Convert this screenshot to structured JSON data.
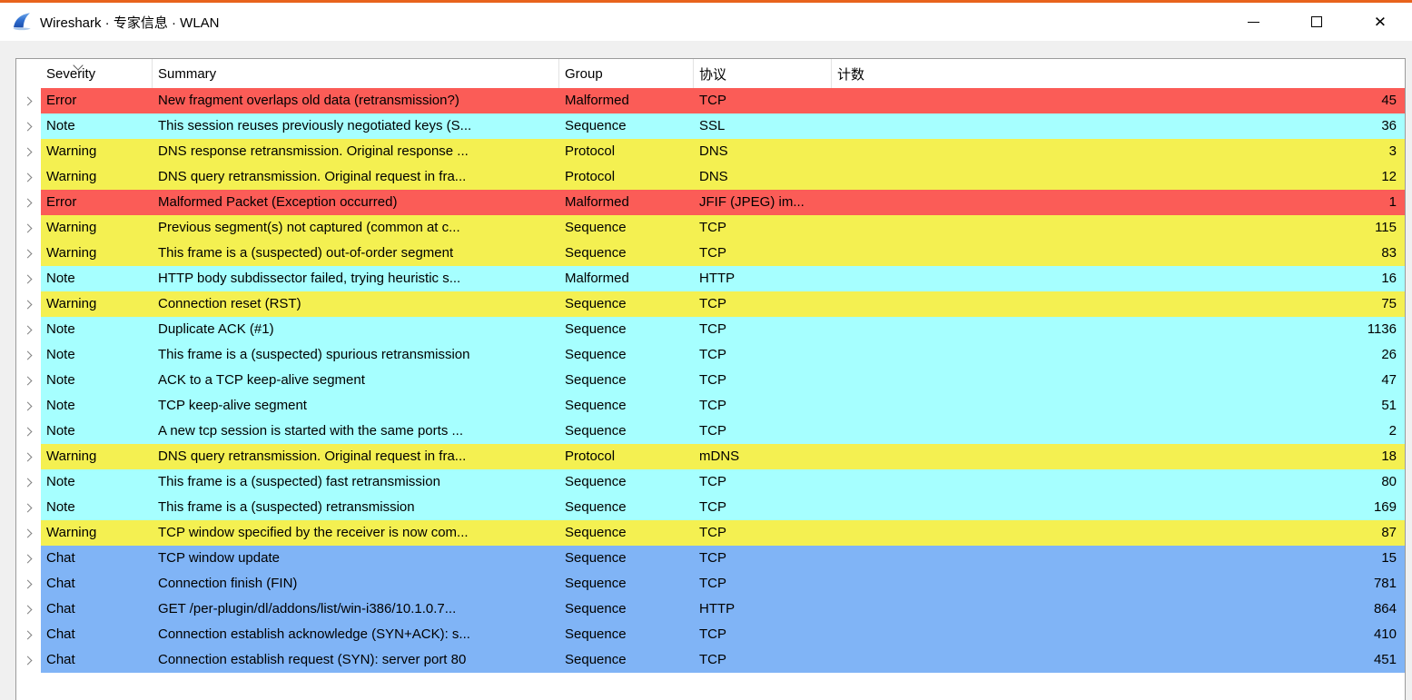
{
  "window": {
    "title": "Wireshark · 专家信息 · WLAN",
    "icons": {
      "app_icon": "wireshark-fin-logo",
      "minimize": "minimize-icon",
      "maximize": "maximize-icon",
      "close": "close-icon"
    },
    "accent_top_border": "#e8631c"
  },
  "table": {
    "columns": [
      "Severity",
      "Summary",
      "Group",
      "协议",
      "计数"
    ],
    "sort": {
      "column": "Severity",
      "direction": "descending"
    },
    "severity_colors": {
      "Error": "#fb5c57",
      "Warning": "#f4f051",
      "Note": "#a6ffff",
      "Chat": "#80b4f6"
    },
    "rows": [
      {
        "severity": "Error",
        "summary": "New fragment overlaps old data (retransmission?)",
        "group": "Malformed",
        "protocol": "TCP",
        "count": "45"
      },
      {
        "severity": "Note",
        "summary": "This session reuses previously negotiated keys (S...",
        "group": "Sequence",
        "protocol": "SSL",
        "count": "36"
      },
      {
        "severity": "Warning",
        "summary": "DNS response retransmission. Original response ...",
        "group": "Protocol",
        "protocol": "DNS",
        "count": "3"
      },
      {
        "severity": "Warning",
        "summary": "DNS query retransmission. Original request in fra...",
        "group": "Protocol",
        "protocol": "DNS",
        "count": "12"
      },
      {
        "severity": "Error",
        "summary": "Malformed Packet (Exception occurred)",
        "group": "Malformed",
        "protocol": "JFIF (JPEG) im...",
        "count": "1"
      },
      {
        "severity": "Warning",
        "summary": "Previous segment(s) not captured (common at c...",
        "group": "Sequence",
        "protocol": "TCP",
        "count": "115"
      },
      {
        "severity": "Warning",
        "summary": "This frame is a (suspected) out-of-order segment",
        "group": "Sequence",
        "protocol": "TCP",
        "count": "83"
      },
      {
        "severity": "Note",
        "summary": "HTTP body subdissector failed, trying heuristic s...",
        "group": "Malformed",
        "protocol": "HTTP",
        "count": "16"
      },
      {
        "severity": "Warning",
        "summary": "Connection reset (RST)",
        "group": "Sequence",
        "protocol": "TCP",
        "count": "75"
      },
      {
        "severity": "Note",
        "summary": "Duplicate ACK (#1)",
        "group": "Sequence",
        "protocol": "TCP",
        "count": "1136"
      },
      {
        "severity": "Note",
        "summary": "This frame is a (suspected) spurious retransmission",
        "group": "Sequence",
        "protocol": "TCP",
        "count": "26"
      },
      {
        "severity": "Note",
        "summary": "ACK to a TCP keep-alive segment",
        "group": "Sequence",
        "protocol": "TCP",
        "count": "47"
      },
      {
        "severity": "Note",
        "summary": "TCP keep-alive segment",
        "group": "Sequence",
        "protocol": "TCP",
        "count": "51"
      },
      {
        "severity": "Note",
        "summary": "A new tcp session is started with the same ports ...",
        "group": "Sequence",
        "protocol": "TCP",
        "count": "2"
      },
      {
        "severity": "Warning",
        "summary": "DNS query retransmission. Original request in fra...",
        "group": "Protocol",
        "protocol": "mDNS",
        "count": "18"
      },
      {
        "severity": "Note",
        "summary": "This frame is a (suspected) fast retransmission",
        "group": "Sequence",
        "protocol": "TCP",
        "count": "80"
      },
      {
        "severity": "Note",
        "summary": "This frame is a (suspected) retransmission",
        "group": "Sequence",
        "protocol": "TCP",
        "count": "169"
      },
      {
        "severity": "Warning",
        "summary": "TCP window specified by the receiver is now com...",
        "group": "Sequence",
        "protocol": "TCP",
        "count": "87"
      },
      {
        "severity": "Chat",
        "summary": "TCP window update",
        "group": "Sequence",
        "protocol": "TCP",
        "count": "15"
      },
      {
        "severity": "Chat",
        "summary": "Connection finish (FIN)",
        "group": "Sequence",
        "protocol": "TCP",
        "count": "781"
      },
      {
        "severity": "Chat",
        "summary": "GET /per-plugin/dl/addons/list/win-i386/10.1.0.7...",
        "group": "Sequence",
        "protocol": "HTTP",
        "count": "864"
      },
      {
        "severity": "Chat",
        "summary": "Connection establish acknowledge (SYN+ACK): s...",
        "group": "Sequence",
        "protocol": "TCP",
        "count": "410"
      },
      {
        "severity": "Chat",
        "summary": "Connection establish request (SYN): server port 80",
        "group": "Sequence",
        "protocol": "TCP",
        "count": "451"
      }
    ]
  }
}
